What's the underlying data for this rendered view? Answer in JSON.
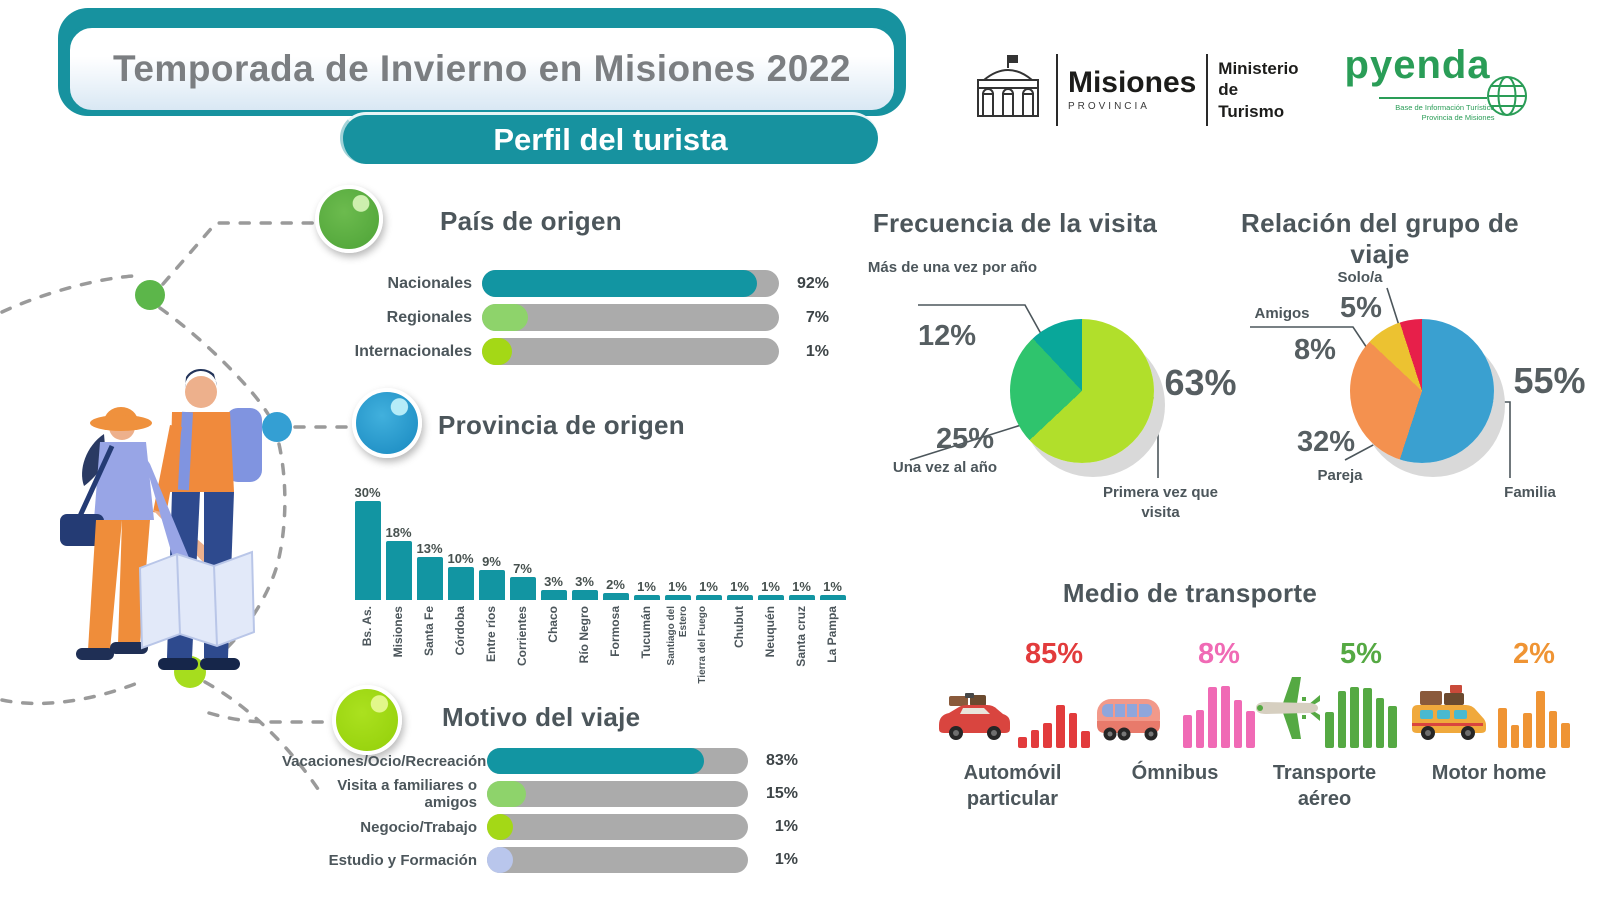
{
  "palette": {
    "teal": "#1295a2",
    "header_teal": "#17929f",
    "track_gray": "#ababab",
    "text_dark": "#4c565b",
    "title_gray": "#7b7e81",
    "pyenda_green": "#2a9d57",
    "dot_green": "#5cb64a",
    "dot_blue": "#349fd3",
    "dot_lime": "#a6dd1e"
  },
  "header": {
    "title": "Temporada de Invierno en Misiones 2022",
    "subtitle": "Perfil del turista"
  },
  "logos": {
    "misiones": {
      "name": "Misiones",
      "sub": "PROVINCIA"
    },
    "ministerio": {
      "line1": "Ministerio",
      "line2": "de Turismo"
    },
    "pyenda": {
      "name": "pyenda",
      "tagline1": "Base de Información Turística",
      "tagline2": "Provincia de Misiones"
    }
  },
  "sections": {
    "pais": {
      "title": "País de origen",
      "rows": [
        {
          "label": "Nacionales",
          "value": 92,
          "value_label": "92%",
          "color": "#1295a2"
        },
        {
          "label": "Regionales",
          "value": 7,
          "value_label": "7%",
          "color": "#8ed36b"
        },
        {
          "label": "Internacionales",
          "value": 1,
          "value_label": "1%",
          "color": "#a4d816"
        }
      ]
    },
    "provincia": {
      "title": "Provincia de origen",
      "categories": [
        "Bs. As.",
        "Misiones",
        "Santa Fe",
        "Córdoba",
        "Entre ríos",
        "Corrientes",
        "Chaco",
        "Río Negro",
        "Formosa",
        "Tucumán",
        "Santiago del Estero",
        "Tierra del Fuego",
        "Chubut",
        "Neuquén",
        "Santa cruz",
        "La Pampa"
      ],
      "values": [
        30,
        18,
        13,
        10,
        9,
        7,
        3,
        3,
        2,
        1,
        1,
        1,
        1,
        1,
        1,
        1
      ]
    },
    "frecuencia": {
      "title": "Frecuencia de la visita",
      "slices": [
        {
          "label": "Primera vez que visita",
          "value": 63,
          "value_label": "63%",
          "color": "#b1df2b"
        },
        {
          "label": "Una vez al año",
          "value": 25,
          "value_label": "25%",
          "color": "#2fc46d"
        },
        {
          "label": "Más de una vez por año",
          "value": 12,
          "value_label": "12%",
          "color": "#09a79a"
        }
      ]
    },
    "relacion": {
      "title": "Relación del grupo de viaje",
      "slices": [
        {
          "label": "Familia",
          "value": 55,
          "value_label": "55%",
          "color": "#3aa0d0"
        },
        {
          "label": "Pareja",
          "value": 32,
          "value_label": "32%",
          "color": "#f4914f"
        },
        {
          "label": "Amigos",
          "value": 8,
          "value_label": "8%",
          "color": "#ecc231"
        },
        {
          "label": "Solo/a",
          "value": 5,
          "value_label": "5%",
          "color": "#e71f4a"
        }
      ]
    },
    "motivo": {
      "title": "Motivo del viaje",
      "rows": [
        {
          "label": "Vacaciones/Ocio/Recreación",
          "value": 83,
          "value_label": "83%",
          "color": "#1295a2"
        },
        {
          "label": "Visita a familiares o amigos",
          "value": 15,
          "value_label": "15%",
          "color": "#8ed36b"
        },
        {
          "label": "Negocio/Trabajo",
          "value": 1,
          "value_label": "1%",
          "color": "#a4d816"
        },
        {
          "label": "Estudio y Formación",
          "value": 1,
          "value_label": "1%",
          "color": "#b9c6ec"
        }
      ]
    },
    "transporte": {
      "title": "Medio de transporte",
      "items": [
        {
          "label": "Automóvil particular",
          "value": 85,
          "value_label": "85%",
          "color": "#e23b3c",
          "bars": [
            11,
            18,
            25,
            43,
            35,
            17
          ]
        },
        {
          "label": "Ómnibus",
          "value": 8,
          "value_label": "8%",
          "color": "#f06ab5",
          "bars": [
            33,
            38,
            61,
            62,
            48,
            37
          ]
        },
        {
          "label": "Transporte aéreo",
          "value": 5,
          "value_label": "5%",
          "color": "#55a943",
          "bars": [
            36,
            57,
            61,
            60,
            50,
            42
          ]
        },
        {
          "label": "Motor home",
          "value": 2,
          "value_label": "2%",
          "color": "#ef9434",
          "bars": [
            40,
            23,
            35,
            57,
            37,
            25
          ]
        }
      ]
    }
  },
  "chart_data": [
    {
      "type": "bar",
      "orientation": "horizontal",
      "title": "País de origen",
      "categories": [
        "Nacionales",
        "Regionales",
        "Internacionales"
      ],
      "values": [
        92,
        7,
        1
      ],
      "unit": "%"
    },
    {
      "type": "bar",
      "orientation": "vertical",
      "title": "Provincia de origen",
      "categories": [
        "Bs. As.",
        "Misiones",
        "Santa Fe",
        "Córdoba",
        "Entre ríos",
        "Corrientes",
        "Chaco",
        "Río Negro",
        "Formosa",
        "Tucumán",
        "Santiago del Estero",
        "Tierra del Fuego",
        "Chubut",
        "Neuquén",
        "Santa cruz",
        "La Pampa"
      ],
      "values": [
        30,
        18,
        13,
        10,
        9,
        7,
        3,
        3,
        2,
        1,
        1,
        1,
        1,
        1,
        1,
        1
      ],
      "unit": "%"
    },
    {
      "type": "pie",
      "title": "Frecuencia de la visita",
      "categories": [
        "Primera vez que visita",
        "Una vez al año",
        "Más de una vez por año"
      ],
      "values": [
        63,
        25,
        12
      ],
      "unit": "%"
    },
    {
      "type": "pie",
      "title": "Relación del grupo de viaje",
      "categories": [
        "Familia",
        "Pareja",
        "Amigos",
        "Solo/a"
      ],
      "values": [
        55,
        32,
        8,
        5
      ],
      "unit": "%"
    },
    {
      "type": "bar",
      "orientation": "horizontal",
      "title": "Motivo del viaje",
      "categories": [
        "Vacaciones/Ocio/Recreación",
        "Visita a familiares o amigos",
        "Negocio/Trabajo",
        "Estudio y Formación"
      ],
      "values": [
        83,
        15,
        1,
        1
      ],
      "unit": "%"
    },
    {
      "type": "pictogram-bar",
      "title": "Medio de transporte",
      "categories": [
        "Automóvil particular",
        "Ómnibus",
        "Transporte aéreo",
        "Motor home"
      ],
      "values": [
        85,
        8,
        5,
        2
      ],
      "unit": "%"
    }
  ]
}
